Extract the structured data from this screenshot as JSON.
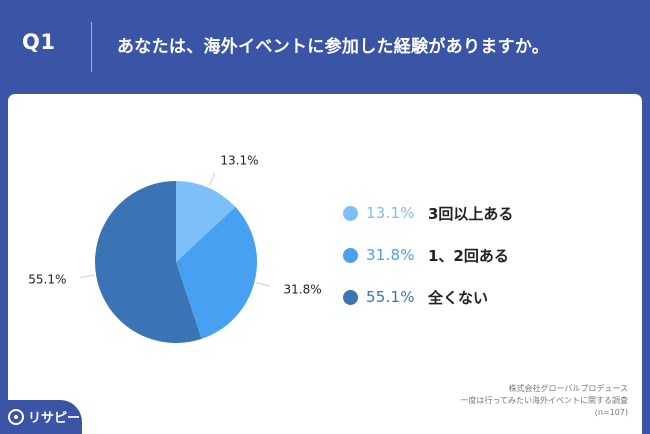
{
  "header": {
    "question_number": "Q1",
    "question_text": "あなたは、海外イベントに参加した経験がありますか。"
  },
  "chart_data": {
    "type": "pie",
    "categories": [
      "3回以上ある",
      "1、2回ある",
      "全くない"
    ],
    "values": [
      13.1,
      31.8,
      55.1
    ],
    "value_labels": [
      "13.1%",
      "31.8%",
      "55.1%"
    ],
    "colors": [
      "#7dbff8",
      "#48a0f2",
      "#3a74b4"
    ],
    "legend_placement": "right",
    "start_angle_deg": 0,
    "direction": "clockwise"
  },
  "legend": {
    "items": [
      {
        "pct": "13.1%",
        "label": "3回以上ある",
        "color": "#7dbff8"
      },
      {
        "pct": "31.8%",
        "label": "1、2回ある",
        "color": "#48a0f2"
      },
      {
        "pct": "55.1%",
        "label": "全くない",
        "color": "#3a74b4"
      }
    ]
  },
  "source": {
    "line1": "株式会社グローバルプロデュース",
    "line2": "一度は行ってみたい海外イベントに関する調査",
    "line3": "(n=107)"
  },
  "brand": {
    "logo_text": "リサピー",
    "logo_icon": "speech-bubble-icon"
  },
  "colors": {
    "background": "#3b55a6",
    "card": "#ffffff"
  }
}
